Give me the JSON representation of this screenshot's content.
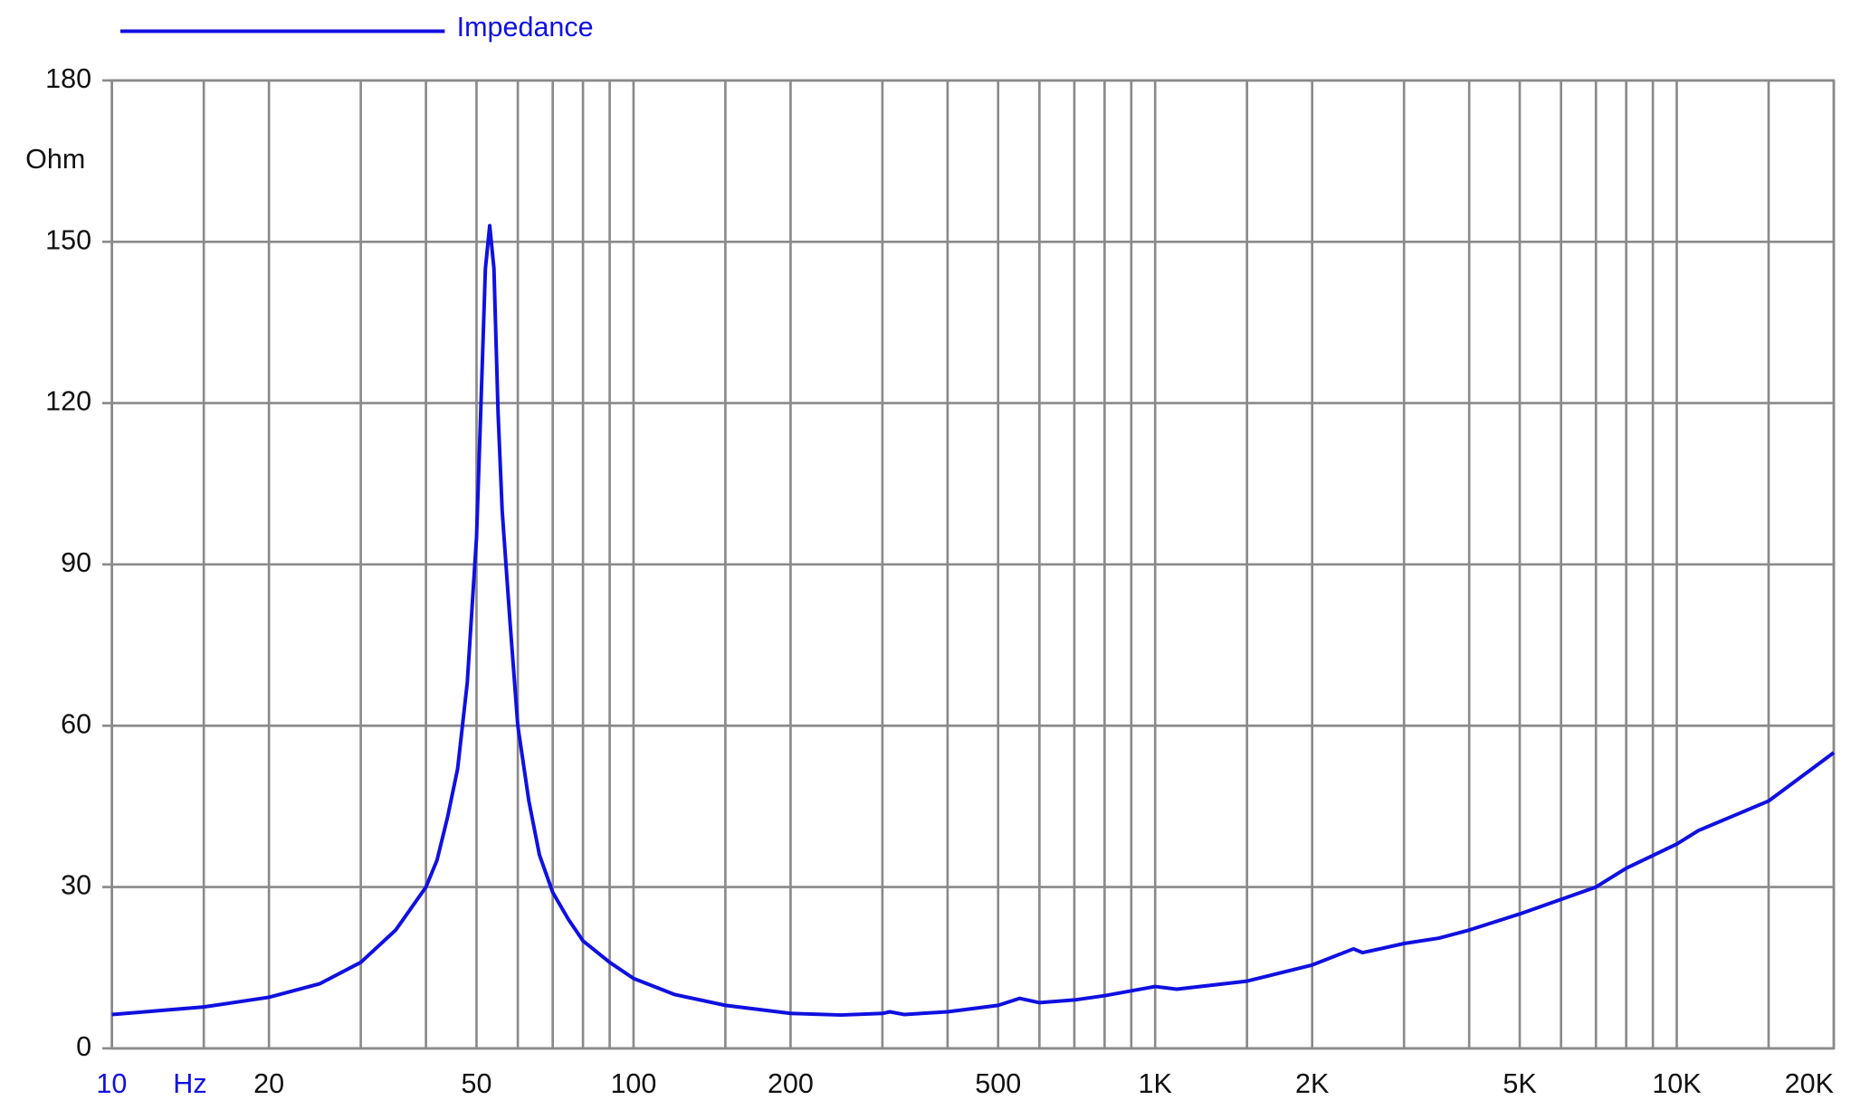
{
  "chart_data": {
    "type": "line",
    "title": null,
    "x_label": "Hz",
    "y_label": "Ohm",
    "log_x": true,
    "grid": true,
    "legend": "top-left",
    "x": [
      10,
      15,
      20,
      25,
      30,
      35,
      40,
      42,
      44,
      46,
      48,
      50,
      51,
      52,
      53,
      54,
      55,
      56,
      58,
      60,
      63,
      66,
      70,
      75,
      80,
      90,
      100,
      120,
      150,
      200,
      250,
      300,
      310,
      330,
      400,
      500,
      550,
      600,
      700,
      800,
      1000,
      1100,
      1500,
      2000,
      2400,
      2500,
      3000,
      3500,
      4000,
      5000,
      7000,
      8000,
      10000,
      11000,
      15000,
      20000
    ],
    "series": [
      {
        "name": "Impedance",
        "color": "#1010e0",
        "values": [
          6.3,
          7.7,
          9.5,
          12,
          16,
          22,
          30,
          35,
          43,
          52,
          68,
          95,
          120,
          145,
          153,
          145,
          118,
          100,
          79,
          60,
          46,
          36,
          29,
          24,
          20,
          16,
          13,
          10,
          8,
          6.5,
          6.2,
          6.5,
          6.8,
          6.3,
          6.8,
          8,
          9.3,
          8.5,
          9,
          9.8,
          11.5,
          11,
          12.5,
          15.5,
          18.5,
          17.8,
          19.5,
          20.5,
          22,
          25,
          30,
          33.5,
          38,
          40.5,
          46,
          55
        ]
      }
    ],
    "xlim": [
      10,
      20000
    ],
    "ylim": [
      0,
      180
    ],
    "xticks": [
      10,
      20,
      50,
      100,
      200,
      500,
      {
        "value": 1000,
        "label": "1K"
      },
      {
        "value": 2000,
        "label": "2K"
      },
      {
        "value": 5000,
        "label": "5K"
      },
      {
        "value": 10000,
        "label": "10K"
      },
      {
        "value": 20000,
        "label": "20K"
      }
    ],
    "xminor": [
      15,
      30,
      40,
      60,
      70,
      80,
      90,
      150,
      300,
      400,
      600,
      700,
      800,
      900,
      1500,
      3000,
      4000,
      6000,
      7000,
      8000,
      9000,
      15000
    ],
    "yticks": [
      0,
      30,
      60,
      90,
      120,
      150,
      180
    ]
  }
}
